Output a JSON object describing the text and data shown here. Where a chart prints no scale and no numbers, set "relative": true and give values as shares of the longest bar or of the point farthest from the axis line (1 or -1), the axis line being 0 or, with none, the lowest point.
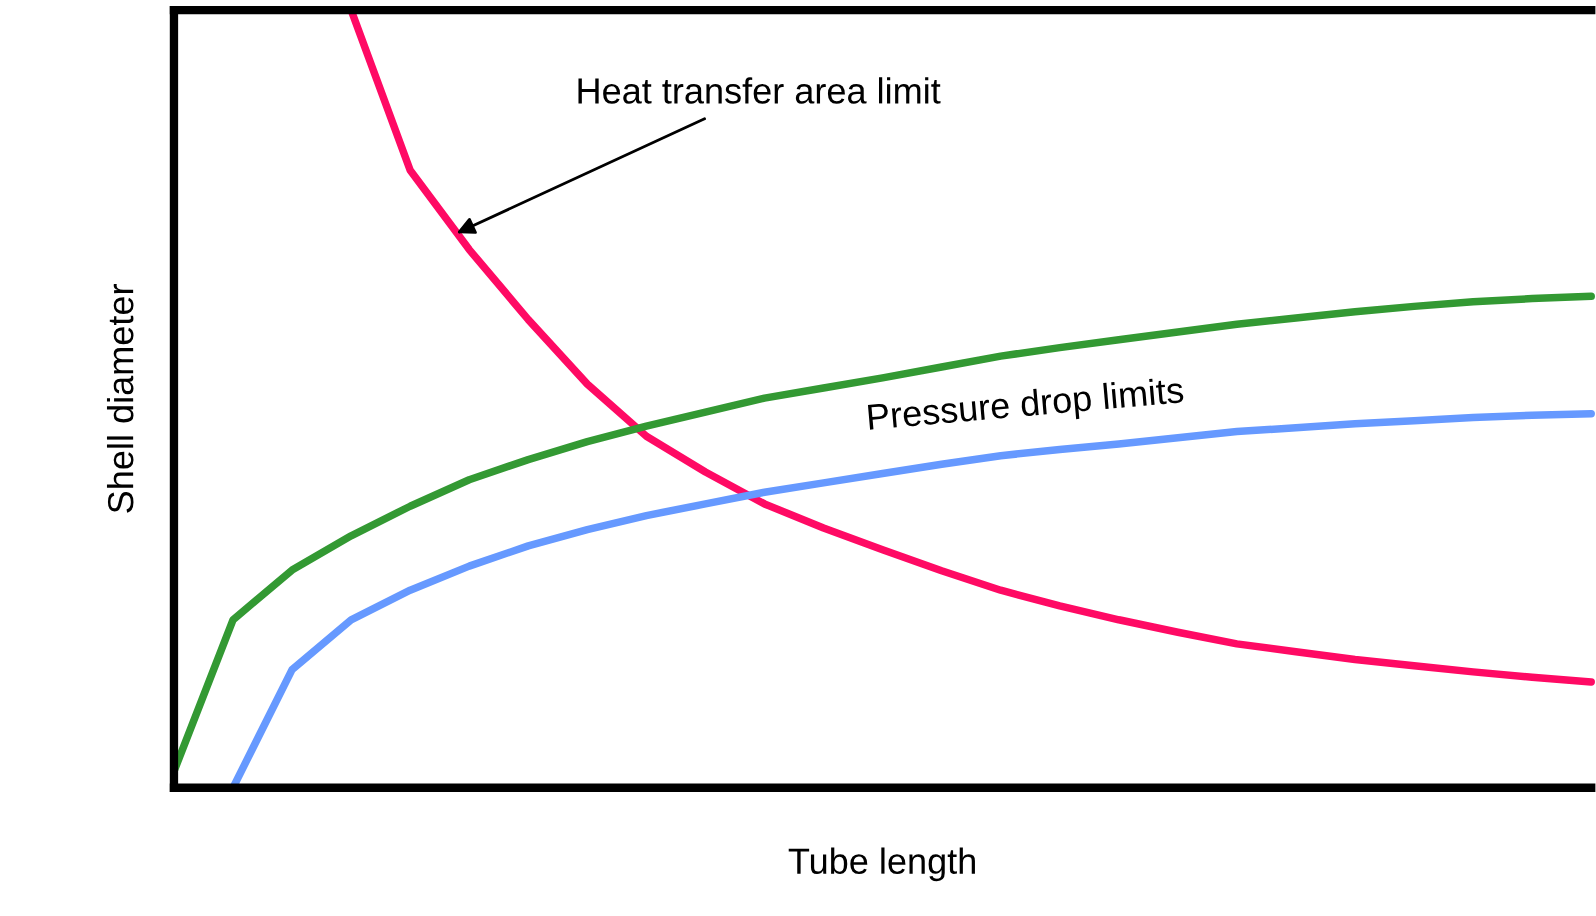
{
  "chart_data": {
    "type": "line",
    "relative": true,
    "xlabel": "Tube length",
    "ylabel": "Shell diameter",
    "categories": [
      null,
      null,
      null,
      null,
      null,
      null,
      null,
      null,
      null,
      null,
      null,
      null,
      null,
      null,
      null,
      null,
      null,
      null,
      null,
      null,
      null,
      null,
      null,
      null,
      null
    ],
    "series": [
      {
        "color": "#ff0a64",
        "values": [
          null,
          null,
          null,
          1.0,
          0.794,
          0.692,
          0.602,
          0.519,
          0.452,
          0.406,
          0.365,
          0.334,
          0.306,
          0.279,
          0.254,
          0.234,
          0.216,
          0.2,
          0.185,
          0.175,
          0.165,
          0.157,
          0.149,
          0.142,
          0.136
        ]
      },
      {
        "color": "#339933",
        "values": [
          0.021,
          0.216,
          0.28,
          0.324,
          0.362,
          0.396,
          0.422,
          0.445,
          0.465,
          0.483,
          0.501,
          0.514,
          0.527,
          0.541,
          0.555,
          0.566,
          0.576,
          0.586,
          0.596,
          0.604,
          0.612,
          0.619,
          0.625,
          0.629,
          0.632
        ]
      },
      {
        "color": "#6699ff",
        "values": [
          null,
          0.0,
          0.152,
          0.216,
          0.254,
          0.285,
          0.311,
          0.332,
          0.35,
          0.365,
          0.38,
          0.392,
          0.404,
          0.416,
          0.427,
          0.435,
          0.442,
          0.45,
          0.458,
          0.463,
          0.468,
          0.472,
          0.476,
          0.479,
          0.481
        ]
      }
    ],
    "annotations": [
      "Heat transfer area limit",
      "Pressure drop limits"
    ],
    "grid": false,
    "legend": false,
    "marker": "none",
    "line_style": "solid"
  }
}
